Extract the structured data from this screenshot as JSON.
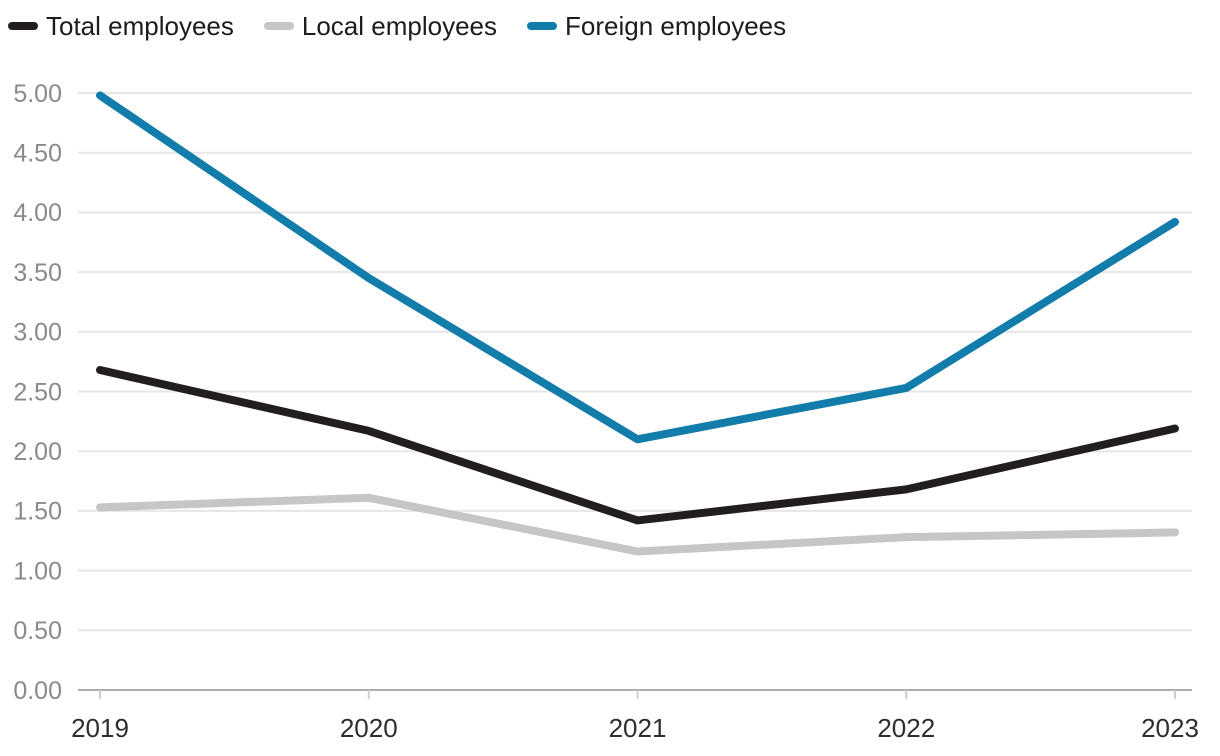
{
  "legend": {
    "items": [
      {
        "label": "Total employees",
        "color": "#221e1f"
      },
      {
        "label": "Local employees",
        "color": "#c6c6c6"
      },
      {
        "label": "Foreign employees",
        "color": "#127dab"
      }
    ]
  },
  "chart_data": {
    "type": "line",
    "x": [
      "2019",
      "2020",
      "2021",
      "2022",
      "2023"
    ],
    "series": [
      {
        "name": "Total employees",
        "color": "#221e1f",
        "values": [
          2.68,
          2.17,
          1.42,
          1.68,
          2.19
        ]
      },
      {
        "name": "Local employees",
        "color": "#c6c6c6",
        "values": [
          1.53,
          1.61,
          1.16,
          1.28,
          1.32
        ]
      },
      {
        "name": "Foreign employees",
        "color": "#127dab",
        "values": [
          4.98,
          3.45,
          2.1,
          2.53,
          3.92
        ]
      }
    ],
    "title": "",
    "xlabel": "",
    "ylabel": "",
    "ylim": [
      0,
      5
    ],
    "ytick_step": 0.5,
    "ytick_labels": [
      "0.00",
      "0.50",
      "1.00",
      "1.50",
      "2.00",
      "2.50",
      "3.00",
      "3.50",
      "4.00",
      "4.50",
      "5.00"
    ],
    "grid": true,
    "legend_position": "top-left",
    "line_width": 8
  },
  "style": {
    "gridline_color": "#e6e6e6",
    "baseline_color": "#aeaeae",
    "tick_color": "#cfcfcf",
    "y_label_color": "#8a8a8a",
    "x_label_color": "#2e2e2e",
    "background": "#ffffff"
  }
}
